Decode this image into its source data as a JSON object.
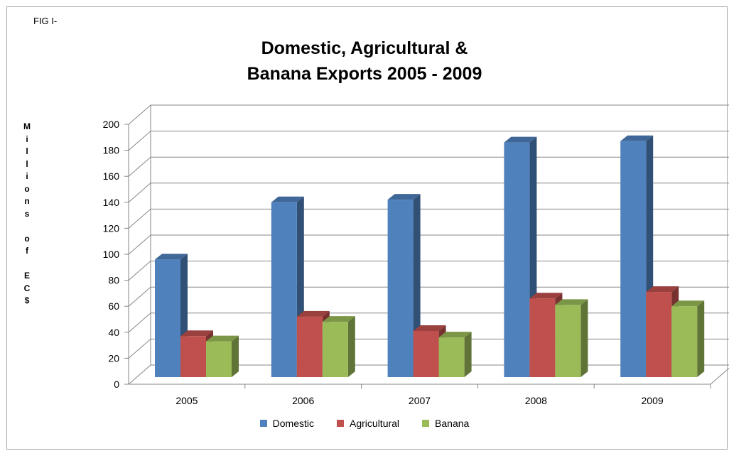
{
  "fig_label": "FIG I-",
  "chart_data": {
    "type": "bar",
    "title_line1": "Domestic, Agricultural &",
    "title_line2": "Banana Exports 2005 - 2009",
    "ylabel": "M\ni\nl\nl\ni\no\nn\ns\n\no\nf\n\nE\nC\n$",
    "categories": [
      "2005",
      "2006",
      "2007",
      "2008",
      "2009"
    ],
    "ylim": [
      0,
      200
    ],
    "yticks": [
      "0",
      "20",
      "40",
      "60",
      "80",
      "100",
      "120",
      "140",
      "160",
      "180",
      "200"
    ],
    "grid": true,
    "legend_position": "bottom",
    "series": [
      {
        "name": "Domestic",
        "values": [
          96,
          140,
          142,
          186,
          187
        ],
        "color": "#4f81bd"
      },
      {
        "name": "Agricultural",
        "values": [
          37,
          52,
          41,
          66,
          71
        ],
        "color": "#c0504d"
      },
      {
        "name": "Banana",
        "values": [
          33,
          48,
          36,
          61,
          60
        ],
        "color": "#9bbb59"
      }
    ]
  }
}
